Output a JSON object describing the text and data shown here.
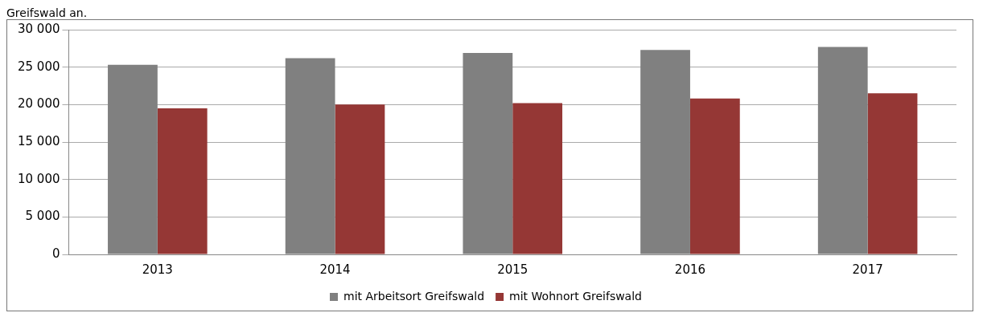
{
  "chart_data": {
    "type": "bar",
    "annotations": [
      "Greifswald an."
    ],
    "categories": [
      "2013",
      "2014",
      "2015",
      "2016",
      "2017"
    ],
    "series": [
      {
        "name": "mit Arbeitsort Greifswald",
        "color": "#808080",
        "values": [
          25300,
          26200,
          26900,
          27300,
          27700
        ]
      },
      {
        "name": "mit Wohnort Greifswald",
        "color": "#953735",
        "values": [
          19500,
          20000,
          20200,
          20800,
          21500
        ]
      }
    ],
    "ylim": [
      0,
      30000
    ],
    "yticks": [
      {
        "value": 0,
        "label": "0"
      },
      {
        "value": 5000,
        "label": "5 000"
      },
      {
        "value": 10000,
        "label": "10 000"
      },
      {
        "value": 15000,
        "label": "15 000"
      },
      {
        "value": 20000,
        "label": "20 000"
      },
      {
        "value": 25000,
        "label": "25 000"
      },
      {
        "value": 30000,
        "label": "30 000"
      }
    ],
    "grid": "y",
    "legend": "bottom"
  }
}
